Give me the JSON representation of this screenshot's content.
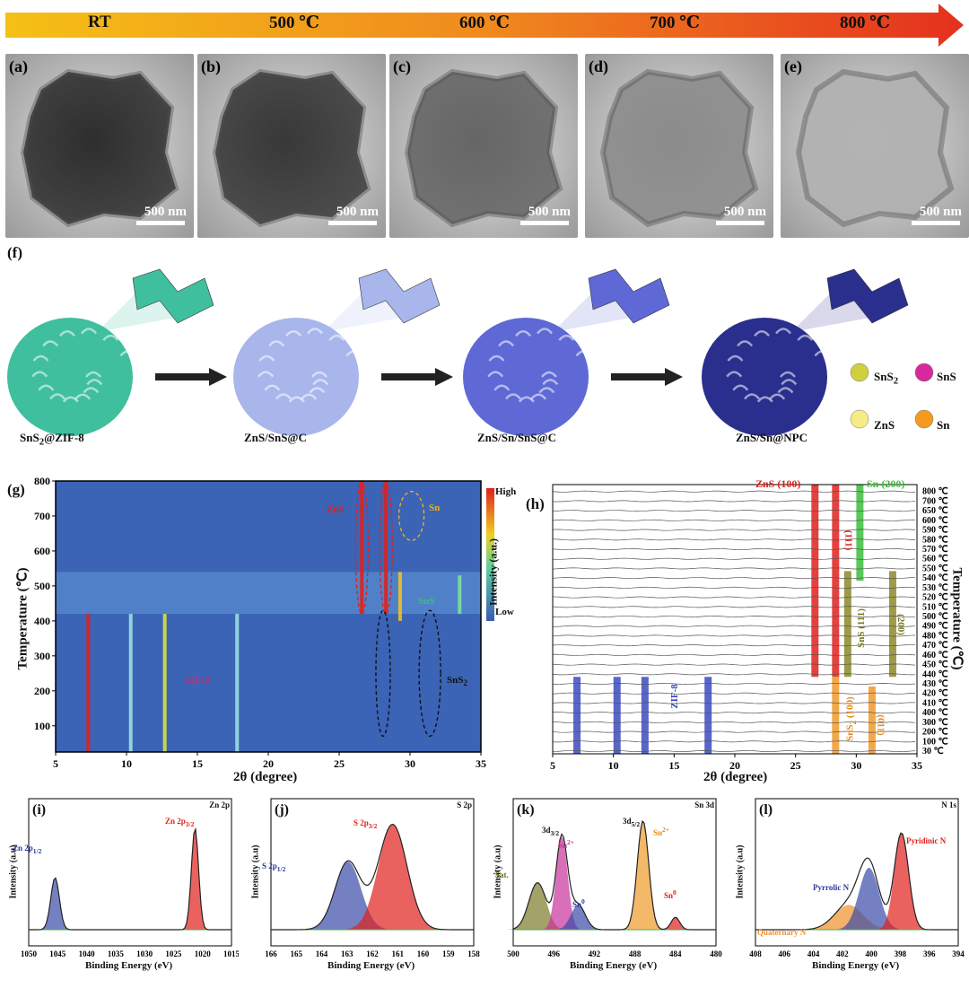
{
  "temperature_bar": {
    "labels": [
      "RT",
      "500 ℃",
      "600 ℃",
      "700 ℃",
      "800 ℃"
    ],
    "colors": [
      "#f5c016",
      "#f08a1e",
      "#e5301e"
    ]
  },
  "tem_panels": [
    {
      "label": "(a)",
      "scale": "500 nm",
      "darkness": 0.82
    },
    {
      "label": "(b)",
      "scale": "500 nm",
      "darkness": 0.78
    },
    {
      "label": "(c)",
      "scale": "500 nm",
      "darkness": 0.6
    },
    {
      "label": "(d)",
      "scale": "500 nm",
      "darkness": 0.45
    },
    {
      "label": "(e)",
      "scale": "500 nm",
      "darkness": 0.3
    }
  ],
  "panel_f": {
    "label": "(f)",
    "stages": [
      {
        "caption_main": "SnS",
        "caption_sub": "2",
        "caption_rest": "@ZIF-8",
        "color": "#3fbf9e"
      },
      {
        "caption_main": "ZnS/SnS@C",
        "caption_sub": "",
        "caption_rest": "",
        "color": "#a8b6ec"
      },
      {
        "caption_main": "ZnS/Sn/SnS@C",
        "caption_sub": "",
        "caption_rest": "",
        "color": "#5e69d6"
      },
      {
        "caption_main": "ZnS/Sn@NPC",
        "caption_sub": "",
        "caption_rest": "",
        "color": "#2a2f8e"
      }
    ],
    "legend": [
      {
        "main": "SnS",
        "sub": "2",
        "color": "#cfcf40"
      },
      {
        "main": "SnS",
        "sub": "",
        "color": "#d62a9c"
      },
      {
        "main": "ZnS",
        "sub": "",
        "color": "#f5ec84"
      },
      {
        "main": "Sn",
        "sub": "",
        "color": "#f29b1e"
      }
    ]
  },
  "panel_g": {
    "label": "(g)",
    "ylabel": "Temperature (℃)",
    "xlabel": "2θ (degree)",
    "xticks": [
      "5",
      "10",
      "15",
      "20",
      "25",
      "30",
      "35"
    ],
    "yticks": [
      "100",
      "200",
      "300",
      "400",
      "500",
      "600",
      "700",
      "800"
    ],
    "colorbar": {
      "title": "Intensity (a.u.)",
      "high": "High",
      "low": "Low"
    },
    "annotations": {
      "zns": "ZnS",
      "sn": "Sn",
      "sns": "SnS",
      "sns2": "SnS",
      "sns2_sub": "2",
      "zif8": "ZIF-8"
    }
  },
  "panel_h": {
    "label": "(h)",
    "ylabel": "Temperature (℃)",
    "xlabel": "2θ (degree)",
    "xticks": [
      "5",
      "10",
      "15",
      "20",
      "25",
      "30",
      "35"
    ],
    "temps": [
      "800 ℃",
      "700 ℃",
      "650 ℃",
      "600 ℃",
      "590 ℃",
      "580 ℃",
      "570 ℃",
      "560 ℃",
      "550 ℃",
      "540 ℃",
      "530 ℃",
      "520 ℃",
      "510 ℃",
      "500 ℃",
      "490 ℃",
      "480 ℃",
      "470 ℃",
      "460 ℃",
      "450 ℃",
      "440 ℃",
      "430 ℃",
      "420 ℃",
      "410 ℃",
      "400 ℃",
      "300 ℃",
      "200 ℃",
      "100 ℃",
      "30 ℃"
    ],
    "labels": {
      "zns100": "ZnS (100)",
      "sn200": "Sn (200)",
      "l111": "(111)",
      "sns111": "SnS (111)",
      "l200": "(200)",
      "zif8": "ZIF-8",
      "sns2_100": "SnS",
      "sns2_sub": "2",
      "sns2_rest": " (100)",
      "l011": "(011)"
    }
  },
  "xps": [
    {
      "label": "(i)",
      "title": "Zn 2p",
      "ylabel": "Intensity (a.u)",
      "xlabel": "Binding Energy (eV)",
      "xticks": [
        "1050",
        "1045",
        "1040",
        "1035",
        "1030",
        "1025",
        "1020",
        "1015"
      ],
      "peaks": [
        {
          "text": "Zn 2p",
          "sub": "1/2",
          "color": "#2c3a9e"
        },
        {
          "text": "Zn 2p",
          "sub": "3/2",
          "color": "#e0201c"
        }
      ]
    },
    {
      "label": "(j)",
      "title": "S 2p",
      "ylabel": "Intensity (a.u)",
      "xlabel": "Binding Energy (eV)",
      "xticks": [
        "166",
        "165",
        "164",
        "163",
        "162",
        "161",
        "160",
        "159",
        "158"
      ],
      "peaks": [
        {
          "text": "S 2p",
          "sub": "1/2",
          "color": "#2c3a9e"
        },
        {
          "text": "S 2p",
          "sub": "3/2",
          "color": "#e0201c"
        }
      ]
    },
    {
      "label": "(k)",
      "title": "Sn 3d",
      "ylabel": "Intensity (a.u)",
      "xlabel": "Binding Energy (eV)",
      "xticks": [
        "500",
        "496",
        "492",
        "488",
        "484",
        "480"
      ],
      "peaks": [
        {
          "text": "Sat.",
          "sub": "",
          "color": "#6d6d1c"
        },
        {
          "text": "3d",
          "sub": "3/2",
          "color": "#111"
        },
        {
          "text": "Sn",
          "sup": "2+",
          "color": "#c8329a"
        },
        {
          "text": "Sn",
          "sup": "0",
          "color": "#2c3a9e"
        },
        {
          "text": "3d",
          "sub": "5/2",
          "color": "#111"
        },
        {
          "text": "Sn",
          "sup": "2+",
          "color": "#e08a1e"
        },
        {
          "text": "Sn",
          "sup": "0",
          "color": "#e0201c"
        }
      ]
    },
    {
      "label": "(l)",
      "title": "N 1s",
      "ylabel": "Intensity (a.u)",
      "xlabel": "Binding Energy (eV)",
      "xticks": [
        "408",
        "406",
        "404",
        "402",
        "400",
        "398",
        "396",
        "394"
      ],
      "peaks": [
        {
          "text": "Pyrrolic N",
          "color": "#2c3a9e"
        },
        {
          "text": "Pyridinic N",
          "color": "#e0201c"
        },
        {
          "text": "Quaternary N",
          "color": "#f0902a"
        }
      ]
    }
  ]
}
